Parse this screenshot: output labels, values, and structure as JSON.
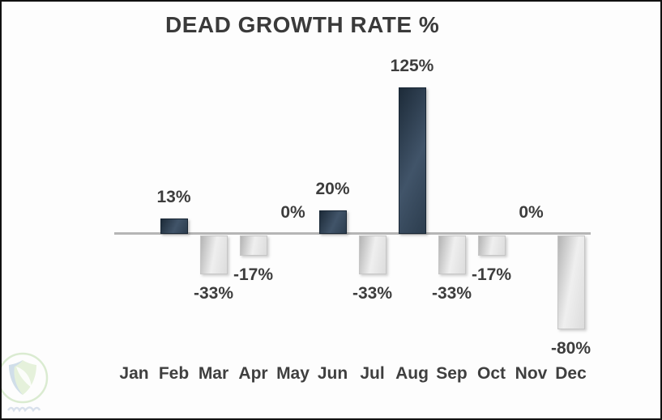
{
  "chart_data": {
    "type": "bar",
    "title": "DEAD GROWTH RATE %",
    "categories": [
      "Jan",
      "Feb",
      "Mar",
      "Apr",
      "May",
      "Jun",
      "Jul",
      "Aug",
      "Sep",
      "Oct",
      "Nov",
      "Dec"
    ],
    "values": [
      null,
      13,
      -33,
      -17,
      0,
      20,
      -33,
      125,
      -33,
      -17,
      0,
      -80
    ],
    "labels": [
      "",
      "13%",
      "-33%",
      "-17%",
      "0%",
      "20%",
      "-33%",
      "125%",
      "-33%",
      "-17%",
      "0%",
      "-80%"
    ],
    "xlabel": "",
    "ylabel": "",
    "ylim": [
      -80,
      125
    ],
    "grid": false,
    "legend": false,
    "colors": {
      "bar_positive": "#32455a",
      "bar_negative": "#e6e6e6",
      "axis_line": "#b5b5b5",
      "label_text": "#3d3d3d",
      "title_text": "#3a3a3a"
    }
  },
  "watermark": {
    "icon": "shield-leaf-logo-watermark",
    "colors": {
      "ring": "#b9dba6",
      "leaf": "#cfe7bb",
      "accent": "#9db8dc"
    }
  }
}
